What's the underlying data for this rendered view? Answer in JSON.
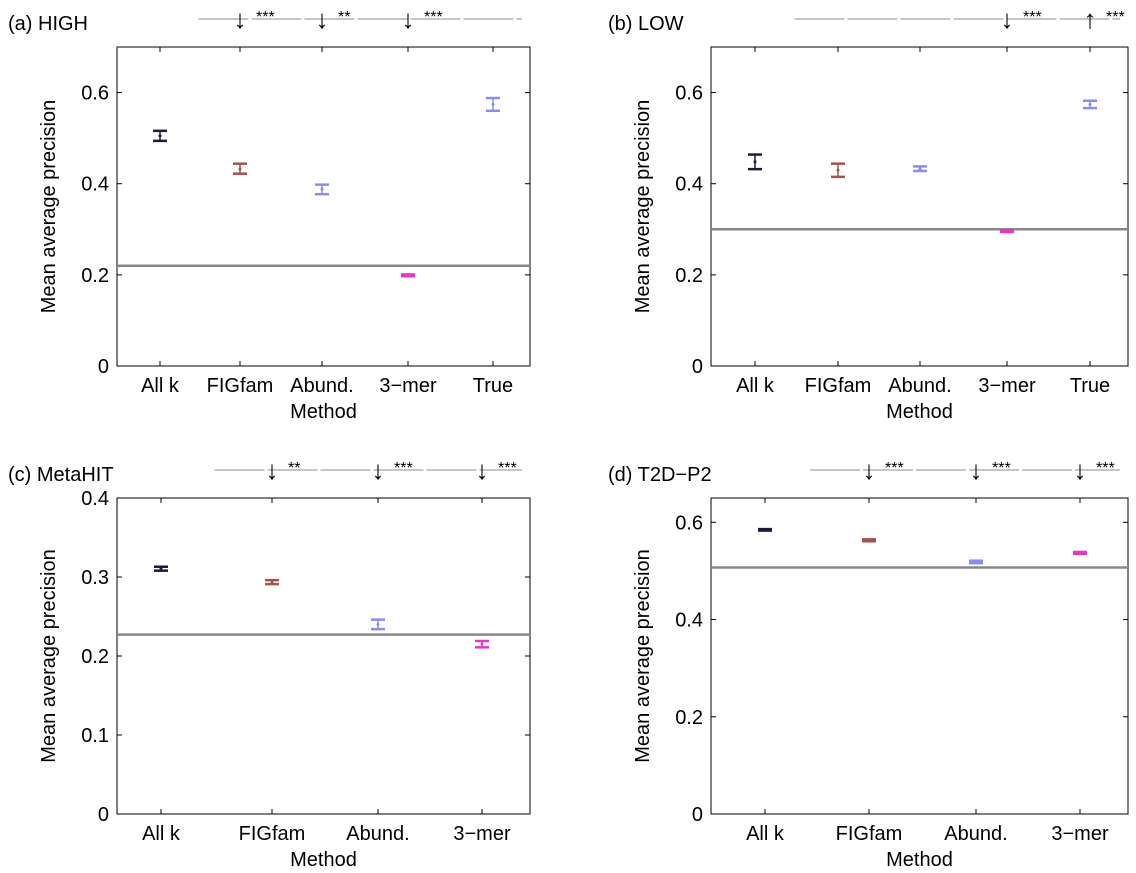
{
  "colors": {
    "all_k": "#1a1a3c",
    "figfam": "#a0564a",
    "abund": "#8c8cf0",
    "kmer": "#e637c4",
    "true": "#8c8cf0",
    "baseline": "#888888",
    "axis": "#000000"
  },
  "chart_data": [
    {
      "type": "scatter",
      "panel_label": "(a) HIGH",
      "xlabel": "Method",
      "ylabel": "Mean average precision",
      "categories": [
        "All k",
        "FIGfam",
        "Abund.",
        "3−mer",
        "True"
      ],
      "ylim": [
        0,
        0.7
      ],
      "yticks": [
        "0",
        "0.2",
        "0.4",
        "0.6"
      ],
      "ytick_values": [
        0,
        0.2,
        0.4,
        0.6
      ],
      "baseline": 0.22,
      "points": [
        {
          "center": 0.505,
          "low": 0.494,
          "high": 0.516
        },
        {
          "center": 0.432,
          "low": 0.422,
          "high": 0.444
        },
        {
          "center": 0.388,
          "low": 0.377,
          "high": 0.398
        },
        {
          "center": 0.199,
          "low": 0.197,
          "high": 0.201
        },
        {
          "center": 0.574,
          "low": 0.56,
          "high": 0.588
        }
      ],
      "annotations": [
        {
          "category_index": 1,
          "arrow": "↓",
          "stars": "***"
        },
        {
          "category_index": 2,
          "arrow": "↓",
          "stars": "**"
        },
        {
          "category_index": 3,
          "arrow": "↓",
          "stars": "***"
        }
      ],
      "grid": false
    },
    {
      "type": "scatter",
      "panel_label": "(b) LOW",
      "xlabel": "Method",
      "ylabel": "Mean average precision",
      "categories": [
        "All k",
        "FIGfam",
        "Abund.",
        "3−mer",
        "True"
      ],
      "ylim": [
        0,
        0.7
      ],
      "yticks": [
        "0",
        "0.2",
        "0.4",
        "0.6"
      ],
      "ytick_values": [
        0,
        0.2,
        0.4,
        0.6
      ],
      "baseline": 0.3,
      "points": [
        {
          "center": 0.448,
          "low": 0.432,
          "high": 0.464
        },
        {
          "center": 0.43,
          "low": 0.415,
          "high": 0.444
        },
        {
          "center": 0.433,
          "low": 0.428,
          "high": 0.438
        },
        {
          "center": 0.296,
          "low": 0.294,
          "high": 0.298
        },
        {
          "center": 0.574,
          "low": 0.566,
          "high": 0.582
        }
      ],
      "annotations": [
        {
          "category_index": 3,
          "arrow": "↓",
          "stars": "***"
        },
        {
          "category_index": 4,
          "arrow": "↑",
          "stars": "***"
        }
      ],
      "grid": false
    },
    {
      "type": "scatter",
      "panel_label": "(c) MetaHIT",
      "xlabel": "Method",
      "ylabel": "Mean average precision",
      "categories": [
        "All k",
        "FIGfam",
        "Abund.",
        "3−mer"
      ],
      "ylim": [
        0,
        0.4
      ],
      "yticks": [
        "0",
        "0.1",
        "0.2",
        "0.3",
        "0.4"
      ],
      "ytick_values": [
        0,
        0.1,
        0.2,
        0.3,
        0.4
      ],
      "baseline": 0.227,
      "points": [
        {
          "center": 0.311,
          "low": 0.308,
          "high": 0.313
        },
        {
          "center": 0.293,
          "low": 0.291,
          "high": 0.296
        },
        {
          "center": 0.24,
          "low": 0.234,
          "high": 0.246
        },
        {
          "center": 0.215,
          "low": 0.211,
          "high": 0.219
        }
      ],
      "annotations": [
        {
          "category_index": 1,
          "arrow": "↓",
          "stars": "**"
        },
        {
          "category_index": 2,
          "arrow": "↓",
          "stars": "***"
        },
        {
          "category_index": 3,
          "arrow": "↓",
          "stars": "***"
        }
      ],
      "grid": false
    },
    {
      "type": "scatter",
      "panel_label": "(d) T2D−P2",
      "xlabel": "Method",
      "ylabel": "Mean average precision",
      "categories": [
        "All k",
        "FIGfam",
        "Abund.",
        "3−mer"
      ],
      "ylim": [
        0,
        0.65
      ],
      "yticks": [
        "0",
        "0.2",
        "0.4",
        "0.6"
      ],
      "ytick_values": [
        0,
        0.2,
        0.4,
        0.6
      ],
      "baseline": 0.507,
      "points": [
        {
          "center": 0.584,
          "low": 0.583,
          "high": 0.586
        },
        {
          "center": 0.563,
          "low": 0.561,
          "high": 0.565
        },
        {
          "center": 0.519,
          "low": 0.516,
          "high": 0.521
        },
        {
          "center": 0.537,
          "low": 0.535,
          "high": 0.539
        }
      ],
      "annotations": [
        {
          "category_index": 1,
          "arrow": "↓",
          "stars": "***"
        },
        {
          "category_index": 2,
          "arrow": "↓",
          "stars": "***"
        },
        {
          "category_index": 3,
          "arrow": "↓",
          "stars": "***"
        }
      ],
      "grid": false
    }
  ]
}
